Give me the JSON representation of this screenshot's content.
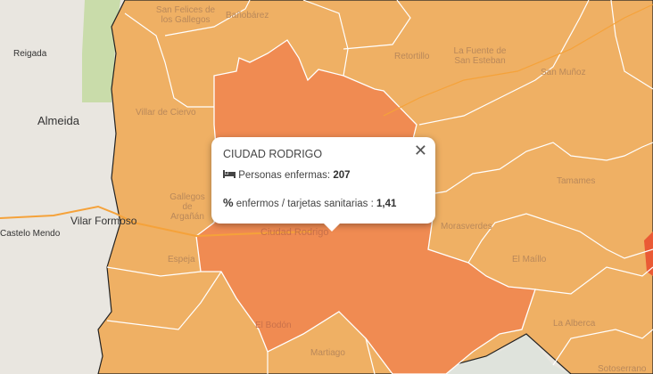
{
  "popup": {
    "title": "CIUDAD RODRIGO",
    "close_icon": "close-icon",
    "rows": [
      {
        "icon": "bed-icon",
        "label": "Personas enfermas:",
        "value": "207"
      },
      {
        "icon": "percent-icon",
        "icon_text": "%",
        "label": "enfermos / tarjetas sanitarias :",
        "value": "1,41"
      }
    ]
  },
  "colors": {
    "municipality_low": "#efb064",
    "municipality_selected": "#f08b52",
    "municipality_high": "#ea5a35",
    "base_map": "#e9e6e0"
  },
  "base_labels": [
    "Reigada",
    "Almeida",
    "Vilar Formoso",
    "Castelo Mendo"
  ],
  "municipality_labels": [
    "San Felices de los Gallegos",
    "Bañobárez",
    "Retortillo",
    "La Fuente de San Esteban",
    "San Muñoz",
    "Villar de Ciervo",
    "Gallegos de Argañán",
    "Ciudad Rodrigo",
    "Espeja",
    "Morasverdes",
    "Tamames",
    "El Maíllo",
    "La Alberca",
    "El Bodón",
    "Martiago",
    "Sotoserrano"
  ]
}
